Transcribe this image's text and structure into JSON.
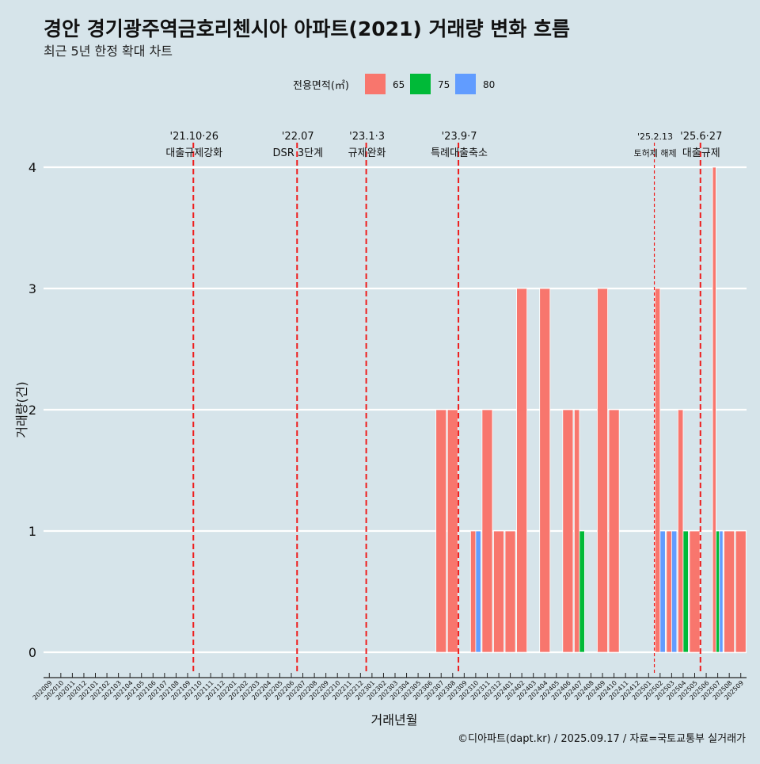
{
  "title": "경안 경기광주역금호리첸시아 아파트(2021) 거래량 변화 흐름",
  "subtitle": "최근 5년 한정 확대 차트",
  "caption": "©디아파트(dapt.kr) / 2025.09.17 / 자료=국토교통부 실거래가",
  "colors": {
    "background": "#d6e4ea",
    "grid": "#ffffff",
    "vline": "#ee1c1c"
  },
  "chart_data": {
    "type": "bar",
    "xlabel": "거래년월",
    "ylabel": "거래량(건)",
    "ylim": [
      0,
      4
    ],
    "yticks": [
      0,
      1,
      2,
      3,
      4
    ],
    "legend": {
      "title": "전용면적(㎡)",
      "position": "top",
      "items": [
        {
          "name": "65",
          "color": "#f8766d"
        },
        {
          "name": "75",
          "color": "#00ba38"
        },
        {
          "name": "80",
          "color": "#619cff"
        }
      ]
    },
    "categories": [
      "202009",
      "202010",
      "202011",
      "202012",
      "202101",
      "202102",
      "202103",
      "202104",
      "202105",
      "202106",
      "202107",
      "202108",
      "202109",
      "202110",
      "202111",
      "202112",
      "202201",
      "202202",
      "202203",
      "202204",
      "202205",
      "202206",
      "202207",
      "202208",
      "202209",
      "202210",
      "202211",
      "202212",
      "202301",
      "202302",
      "202303",
      "202304",
      "202305",
      "202306",
      "202307",
      "202308",
      "202309",
      "202310",
      "202311",
      "202312",
      "202401",
      "202402",
      "202403",
      "202404",
      "202405",
      "202406",
      "202407",
      "202408",
      "202409",
      "202410",
      "202411",
      "202412",
      "202501",
      "202502",
      "202503",
      "202504",
      "202505",
      "202506",
      "202507",
      "202508",
      "202509"
    ],
    "tick_labels": [
      "202009",
      "202010",
      "202011",
      "202012",
      "202101",
      "202102",
      "202103",
      "202104",
      "202105",
      "202106",
      "202107",
      "202108",
      "202109",
      "202110",
      "202111",
      "202112",
      "202201",
      "202202",
      "202203",
      "202204",
      "202205",
      "202206",
      "202207",
      "202208",
      "202209",
      "202210",
      "202211",
      "202212",
      "202301",
      "202302",
      "202303",
      "202304",
      "202305",
      "202306",
      "202307",
      "202308",
      "202309",
      "202310",
      "202311",
      "202312",
      "202401",
      "202402",
      "202403",
      "202404",
      "202405",
      "202406",
      "202407",
      "202408",
      "202409",
      "202410",
      "202411",
      "202412",
      "202501",
      "202502",
      "202503",
      "202504",
      "202505",
      "202506",
      "202507",
      "202508",
      "202509"
    ],
    "bars": [
      {
        "month": "202307",
        "size": "65",
        "value": 2
      },
      {
        "month": "202308",
        "size": "65",
        "value": 2
      },
      {
        "month": "202310",
        "size": "65",
        "value": 1
      },
      {
        "month": "202310",
        "size": "80",
        "value": 1
      },
      {
        "month": "202311",
        "size": "65",
        "value": 2
      },
      {
        "month": "202312",
        "size": "65",
        "value": 1
      },
      {
        "month": "202401",
        "size": "65",
        "value": 1
      },
      {
        "month": "202402",
        "size": "65",
        "value": 3
      },
      {
        "month": "202404",
        "size": "65",
        "value": 3
      },
      {
        "month": "202406",
        "size": "65",
        "value": 2
      },
      {
        "month": "202407",
        "size": "65",
        "value": 2
      },
      {
        "month": "202407",
        "size": "75",
        "value": 1
      },
      {
        "month": "202409",
        "size": "65",
        "value": 3
      },
      {
        "month": "202410",
        "size": "65",
        "value": 2
      },
      {
        "month": "202502",
        "size": "65",
        "value": 3
      },
      {
        "month": "202502",
        "size": "80",
        "value": 1
      },
      {
        "month": "202503",
        "size": "65",
        "value": 1
      },
      {
        "month": "202503",
        "size": "80",
        "value": 1
      },
      {
        "month": "202504",
        "size": "65",
        "value": 2
      },
      {
        "month": "202504",
        "size": "75",
        "value": 1
      },
      {
        "month": "202505",
        "size": "65",
        "value": 1
      },
      {
        "month": "202507",
        "size": "65",
        "value": 4
      },
      {
        "month": "202507",
        "size": "75",
        "value": 1
      },
      {
        "month": "202507",
        "size": "80",
        "value": 1
      },
      {
        "month": "202508",
        "size": "65",
        "value": 1
      },
      {
        "month": "202509",
        "size": "65",
        "value": 1
      }
    ],
    "events": [
      {
        "x": 13.0,
        "date": "'21.10·26",
        "label": "대출규제강화",
        "dashed": "long"
      },
      {
        "x": 22.0,
        "date": "'22.07",
        "label": "DSR 3단계",
        "dashed": "long"
      },
      {
        "x": 28.0,
        "date": "'23.1·3",
        "label": "규제완화",
        "dashed": "long"
      },
      {
        "x": 36.0,
        "date": "'23.9·7",
        "label": "특례대출축소",
        "dashed": "long"
      },
      {
        "x": 53.0,
        "date": "'25.2.13",
        "label": "토허제 해제",
        "dashed": "short",
        "small": true
      },
      {
        "x": 57.0,
        "date": "'25.6·27",
        "label": "대출규제",
        "dashed": "long"
      }
    ]
  }
}
